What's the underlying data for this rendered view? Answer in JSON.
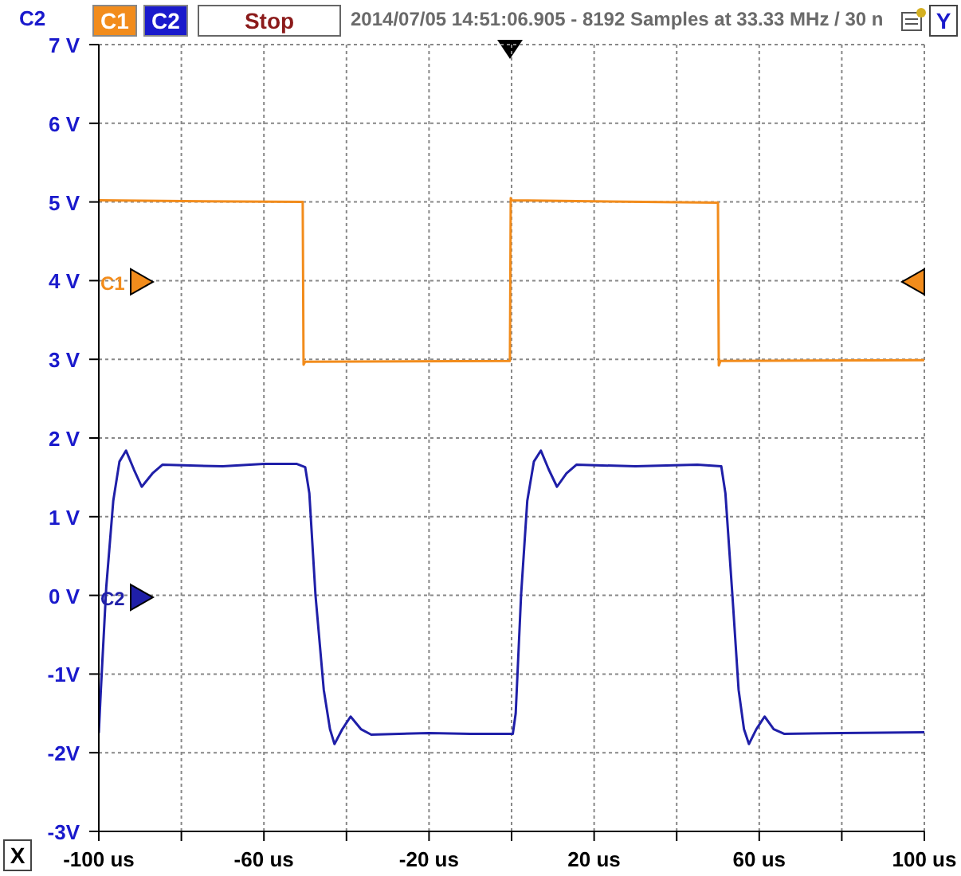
{
  "chart_data": {
    "type": "line",
    "title": "2014/07/05 14:51:06.905 - 8192 Samples at 33.33 MHz / 30 n",
    "ylabel": "C2",
    "annotations": [
      "C1",
      "C2",
      "Stop",
      "Y",
      "X"
    ],
    "xlim": [
      -100,
      100
    ],
    "xticks": [
      {
        "value": -100,
        "label": "-100 us"
      },
      {
        "value": -80,
        "label": null
      },
      {
        "value": -60,
        "label": "-60 us"
      },
      {
        "value": -40,
        "label": null
      },
      {
        "value": -20,
        "label": "-20 us"
      },
      {
        "value": 0,
        "label": null
      },
      {
        "value": 20,
        "label": "20 us"
      },
      {
        "value": 40,
        "label": null
      },
      {
        "value": 60,
        "label": "60 us"
      },
      {
        "value": 80,
        "label": null
      },
      {
        "value": 100,
        "label": "100 us"
      }
    ],
    "ylim": [
      -3,
      7
    ],
    "yticks": [
      {
        "value": -3,
        "label": "-3V"
      },
      {
        "value": -2,
        "label": "-2V"
      },
      {
        "value": -1,
        "label": "-1V"
      },
      {
        "value": 0,
        "label": "0 V"
      },
      {
        "value": 1,
        "label": "1 V"
      },
      {
        "value": 2,
        "label": "2 V"
      },
      {
        "value": 3,
        "label": "3 V"
      },
      {
        "value": 4,
        "label": "4 V"
      },
      {
        "value": 5,
        "label": "5 V"
      },
      {
        "value": 6,
        "label": "6 V"
      },
      {
        "value": 7,
        "label": "7 V"
      }
    ],
    "grid": true,
    "legend": "left",
    "marker": "none",
    "line_style": "solid",
    "series": [
      {
        "name": "C1",
        "color": "#f28c1c",
        "x": [
          -100,
          -50.6,
          -50.4,
          -50,
          -0.4,
          -0.2,
          0,
          50,
          50.2,
          50.6,
          100
        ],
        "values": [
          5.02,
          5.0,
          2.93,
          2.97,
          2.98,
          5.05,
          5.02,
          4.99,
          2.92,
          2.98,
          2.99
        ]
      },
      {
        "name": "C2",
        "color": "#1f1fa8",
        "x": [
          -100,
          -99.5,
          -98.2,
          -96.5,
          -95,
          -93.4,
          -91.5,
          -89.6,
          -87,
          -84.6,
          -70,
          -60,
          -52,
          -50,
          -49,
          -47.5,
          -45.5,
          -44,
          -42.9,
          -41,
          -39,
          -36.5,
          -34,
          -20,
          -10,
          0.3,
          1,
          2.3,
          3.8,
          5.4,
          7.1,
          9,
          11,
          13.3,
          15.7,
          30,
          45,
          50.8,
          51.8,
          53.5,
          55,
          56.3,
          57.5,
          59.3,
          61.3,
          63.5,
          66,
          80,
          100
        ],
        "values": [
          -1.75,
          -1.2,
          0.1,
          1.2,
          1.7,
          1.84,
          1.6,
          1.38,
          1.55,
          1.66,
          1.64,
          1.67,
          1.67,
          1.63,
          1.3,
          0,
          -1.2,
          -1.7,
          -1.89,
          -1.7,
          -1.54,
          -1.7,
          -1.77,
          -1.75,
          -1.76,
          -1.76,
          -1.5,
          0,
          1.2,
          1.7,
          1.84,
          1.6,
          1.38,
          1.55,
          1.66,
          1.64,
          1.66,
          1.64,
          1.3,
          0,
          -1.2,
          -1.7,
          -1.89,
          -1.7,
          -1.54,
          -1.7,
          -1.76,
          -1.75,
          -1.74
        ]
      }
    ]
  }
}
